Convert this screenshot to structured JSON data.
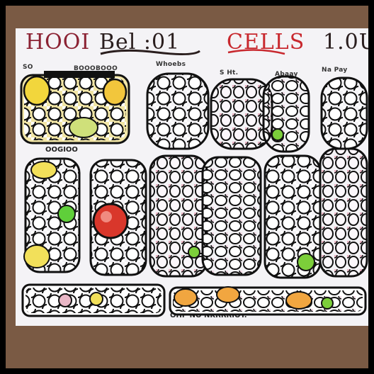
{
  "title": {
    "left": "HOOI",
    "middle": "Bel :01",
    "right": "CELLS",
    "far_right": "1.0U"
  },
  "labels": {
    "top_left": "SO",
    "top_left_2": "BOOOBOOO",
    "top_mid": "Whoebs",
    "top_mid2": "S Ht.",
    "top_mid3": "Abaay",
    "top_right": "Na Pay",
    "row1_caption": "OOGIOO",
    "bottom_caption": "OHP NO NKRRRIOT."
  },
  "colors": {
    "outline": "#111111",
    "title_red": "#c8282e",
    "title_dark": "#2a1e1e",
    "accent_yellow": "#f2d63c",
    "accent_green": "#7ccf3a",
    "accent_red": "#d9372b",
    "accent_pink": "#e9b7c6",
    "accent_orange": "#f1a640"
  }
}
